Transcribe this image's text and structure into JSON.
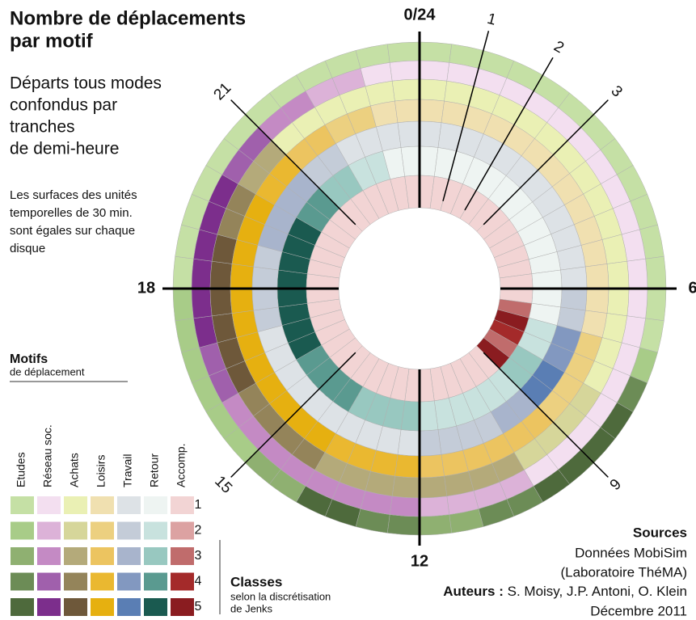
{
  "chart_data": {
    "type": "radial_heatmap",
    "title_lines": [
      "Nombre de déplacements",
      "par motif"
    ],
    "subtitle_lines": [
      "Départs tous modes",
      "confondus par",
      "tranches",
      "de demi-heure"
    ],
    "note_lines": [
      "Les surfaces des unités",
      "temporelles de 30 min.",
      "sont égales sur chaque",
      "disque"
    ],
    "hour_ticks": [
      {
        "value": 0,
        "label": "0/24"
      },
      1,
      2,
      3,
      6,
      9,
      12,
      15,
      18,
      21
    ],
    "hlim": [
      0,
      24
    ],
    "series": [
      {
        "name": "Etudes",
        "colors": [
          "#c5e0a5",
          "#a8cc88",
          "#8fb071",
          "#6c8c56",
          "#4e6a3c"
        ],
        "values": [
          1,
          1,
          1,
          1,
          1,
          1,
          1,
          1,
          1,
          1,
          1,
          1,
          1,
          1,
          2,
          4,
          5,
          5,
          5,
          5,
          4,
          4,
          3,
          3,
          4,
          4,
          5,
          5,
          3,
          3,
          2,
          2,
          2,
          2,
          2,
          2,
          1,
          1,
          1,
          1,
          1,
          1,
          1,
          1,
          1,
          1,
          1,
          1
        ]
      },
      {
        "name": "Réseau soc.",
        "colors": [
          "#f3dff0",
          "#dcb2d8",
          "#c48ac4",
          "#a060ac",
          "#7c2e8c"
        ],
        "values": [
          1,
          1,
          1,
          1,
          1,
          1,
          1,
          1,
          1,
          1,
          1,
          1,
          1,
          1,
          1,
          1,
          1,
          1,
          1,
          1,
          2,
          2,
          2,
          2,
          3,
          3,
          3,
          3,
          3,
          3,
          3,
          3,
          4,
          4,
          5,
          5,
          5,
          5,
          5,
          5,
          4,
          4,
          3,
          3,
          2,
          2,
          1,
          1
        ]
      },
      {
        "name": "Achats",
        "colors": [
          "#eaf0b4",
          "#d6d69a",
          "#b4aa7a",
          "#94845a",
          "#6e583a"
        ],
        "values": [
          1,
          1,
          1,
          1,
          1,
          1,
          1,
          1,
          1,
          1,
          1,
          1,
          1,
          1,
          1,
          1,
          2,
          2,
          2,
          2,
          3,
          3,
          3,
          3,
          3,
          3,
          3,
          3,
          4,
          4,
          4,
          4,
          5,
          5,
          5,
          5,
          5,
          5,
          4,
          4,
          3,
          3,
          1,
          1,
          1,
          1,
          1,
          1
        ]
      },
      {
        "name": "Loisirs",
        "colors": [
          "#f0e0b0",
          "#ecd080",
          "#ecc460",
          "#eab830",
          "#e6b010"
        ],
        "values": [
          1,
          1,
          1,
          1,
          1,
          1,
          1,
          1,
          1,
          1,
          1,
          1,
          1,
          1,
          2,
          2,
          2,
          2,
          3,
          3,
          3,
          3,
          3,
          3,
          4,
          4,
          4,
          4,
          5,
          5,
          5,
          5,
          5,
          5,
          5,
          5,
          5,
          5,
          5,
          5,
          4,
          4,
          3,
          3,
          2,
          2,
          1,
          1
        ]
      },
      {
        "name": "Travail",
        "colors": [
          "#dde2e6",
          "#c4ccd8",
          "#a8b4cc",
          "#8298c0",
          "#5a7eb4"
        ],
        "values": [
          1,
          1,
          1,
          1,
          1,
          1,
          1,
          1,
          1,
          1,
          1,
          1,
          2,
          2,
          4,
          4,
          5,
          5,
          3,
          3,
          2,
          2,
          2,
          2,
          1,
          1,
          1,
          1,
          1,
          1,
          1,
          1,
          1,
          1,
          2,
          2,
          2,
          2,
          3,
          3,
          3,
          3,
          2,
          2,
          1,
          1,
          1,
          1
        ]
      },
      {
        "name": "Retour",
        "colors": [
          "#eef4f2",
          "#c8e2de",
          "#98c8c0",
          "#5a9a90",
          "#1a5a50"
        ],
        "values": [
          1,
          1,
          1,
          1,
          1,
          1,
          1,
          1,
          1,
          1,
          1,
          1,
          1,
          1,
          2,
          2,
          3,
          3,
          2,
          2,
          2,
          2,
          2,
          2,
          3,
          3,
          3,
          3,
          4,
          4,
          4,
          4,
          5,
          5,
          5,
          5,
          5,
          5,
          5,
          5,
          4,
          4,
          3,
          3,
          2,
          2,
          1,
          1
        ]
      },
      {
        "name": "Accomp.",
        "colors": [
          "#f2d4d4",
          "#dca2a2",
          "#c06c6c",
          "#a42a2a",
          "#8a1c20"
        ],
        "values": [
          1,
          1,
          1,
          1,
          1,
          1,
          1,
          1,
          1,
          1,
          1,
          1,
          1,
          3,
          5,
          4,
          3,
          5,
          1,
          1,
          1,
          1,
          1,
          1,
          1,
          1,
          1,
          1,
          1,
          1,
          1,
          1,
          1,
          1,
          1,
          1,
          1,
          1,
          1,
          1,
          1,
          1,
          1,
          1,
          1,
          1,
          1,
          1
        ]
      }
    ],
    "legend_title": "Motifs",
    "legend_subtitle": "de déplacement",
    "classes": [
      1,
      2,
      3,
      4,
      5
    ],
    "classes_title": "Classes",
    "classes_note_lines": [
      "selon la discrétisation",
      "de Jenks"
    ],
    "sources_title": "Sources",
    "sources_lines": [
      "Données MobiSim",
      "(Laboratoire ThéMA)"
    ],
    "authors_label": "Auteurs :",
    "authors": "S. Moisy, J.P. Antoni, O. Klein",
    "date": "Décembre 2011"
  }
}
